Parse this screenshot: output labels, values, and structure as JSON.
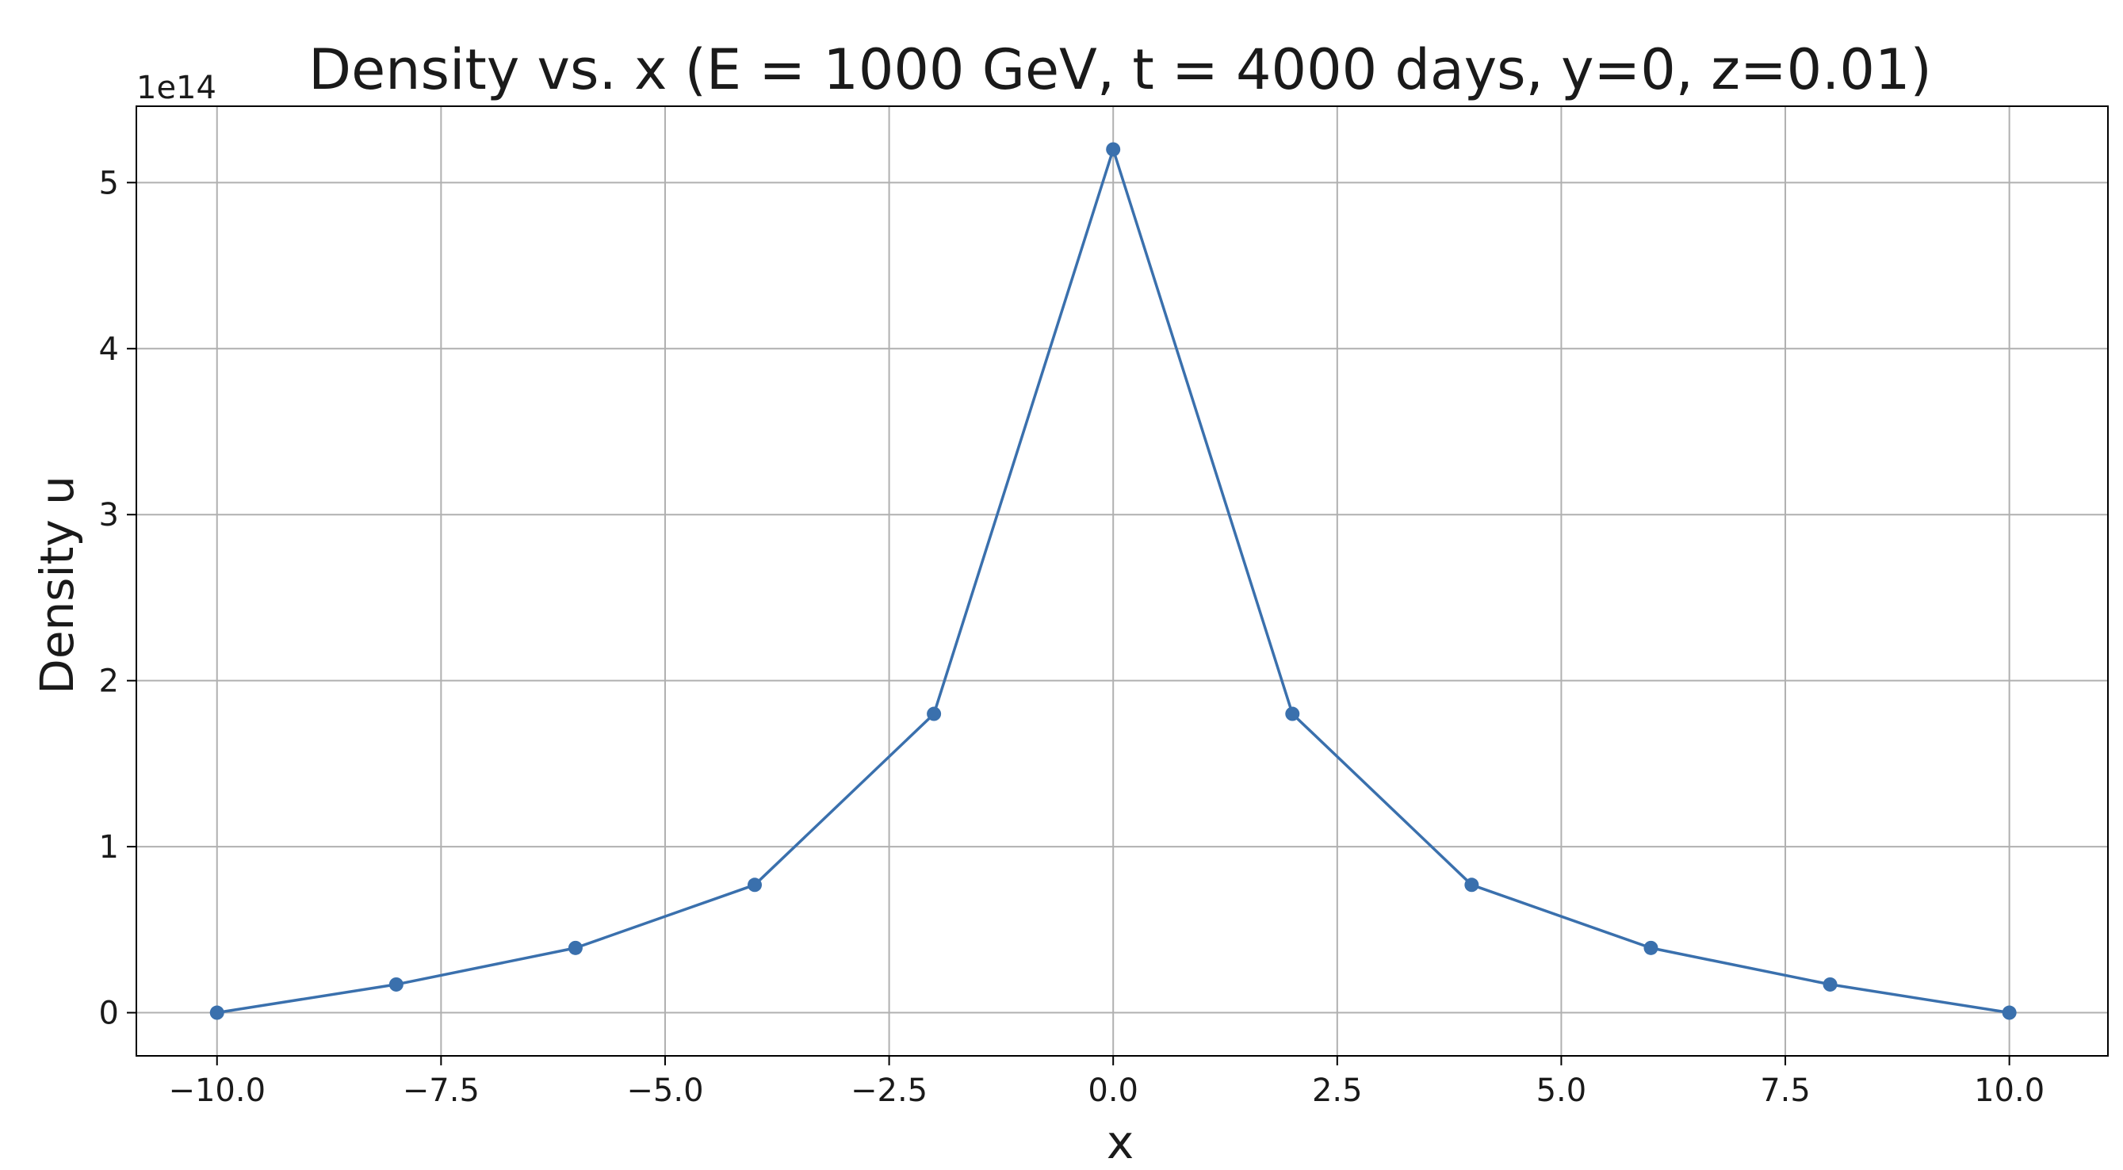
{
  "chart_data": {
    "type": "line",
    "title": "Density vs. x (E = 1000 GeV, t = 4000 days, y=0, z=0.01)",
    "xlabel": "x",
    "ylabel": "Density u",
    "y_offset_label": "1e14",
    "xlim": [
      -10.9,
      11.1
    ],
    "ylim": [
      -0.26,
      5.46
    ],
    "x_ticks": [
      -10.0,
      -7.5,
      -5.0,
      -2.5,
      0.0,
      2.5,
      5.0,
      7.5,
      10.0
    ],
    "x_tick_labels": [
      "−10.0",
      "−7.5",
      "−5.0",
      "−2.5",
      "0.0",
      "2.5",
      "5.0",
      "7.5",
      "10.0"
    ],
    "y_ticks": [
      0,
      1,
      2,
      3,
      4,
      5
    ],
    "y_tick_labels": [
      "0",
      "1",
      "2",
      "3",
      "4",
      "5"
    ],
    "grid": true,
    "series": [
      {
        "x": [
          -10,
          -8,
          -6,
          -4,
          -2,
          0,
          2,
          4,
          6,
          8,
          10
        ],
        "y": [
          0.0,
          0.17,
          0.39,
          0.77,
          1.8,
          5.2,
          1.8,
          0.77,
          0.39,
          0.17,
          0.0
        ],
        "color": "#3a70ad",
        "marker": "circle"
      }
    ]
  }
}
